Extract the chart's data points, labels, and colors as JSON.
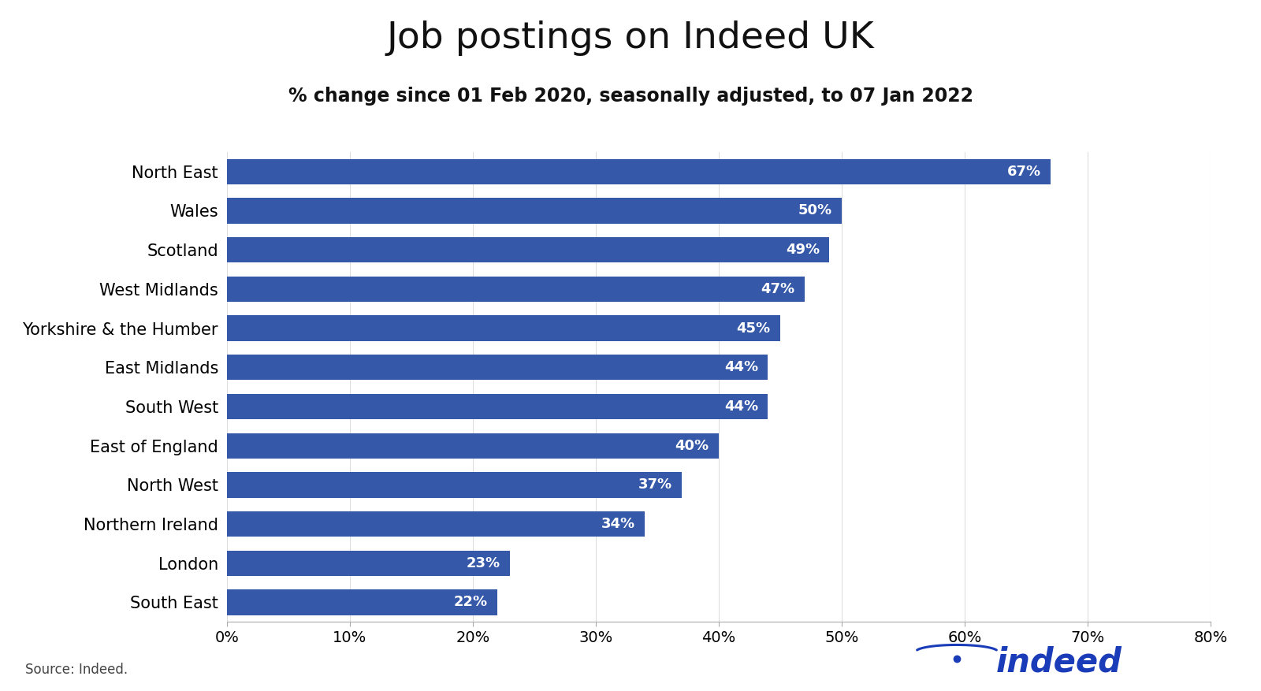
{
  "title": "Job postings on Indeed UK",
  "subtitle": "% change since 01 Feb 2020, seasonally adjusted, to 07 Jan 2022",
  "categories": [
    "South East",
    "London",
    "Northern Ireland",
    "North West",
    "East of England",
    "South West",
    "East Midlands",
    "Yorkshire & the Humber",
    "West Midlands",
    "Scotland",
    "Wales",
    "North East"
  ],
  "values": [
    22,
    23,
    34,
    37,
    40,
    44,
    44,
    45,
    47,
    49,
    50,
    67
  ],
  "bar_color": "#3558a8",
  "label_color": "#ffffff",
  "source_text": "Source: Indeed.",
  "xlim": [
    0,
    80
  ],
  "xticks": [
    0,
    10,
    20,
    30,
    40,
    50,
    60,
    70,
    80
  ],
  "xtick_labels": [
    "0%",
    "10%",
    "20%",
    "30%",
    "40%",
    "50%",
    "60%",
    "70%",
    "80%"
  ],
  "title_fontsize": 34,
  "subtitle_fontsize": 17,
  "label_fontsize": 13,
  "category_fontsize": 15,
  "tick_fontsize": 14,
  "source_fontsize": 12,
  "indeed_color": "#1a3cb8",
  "background_color": "#ffffff"
}
